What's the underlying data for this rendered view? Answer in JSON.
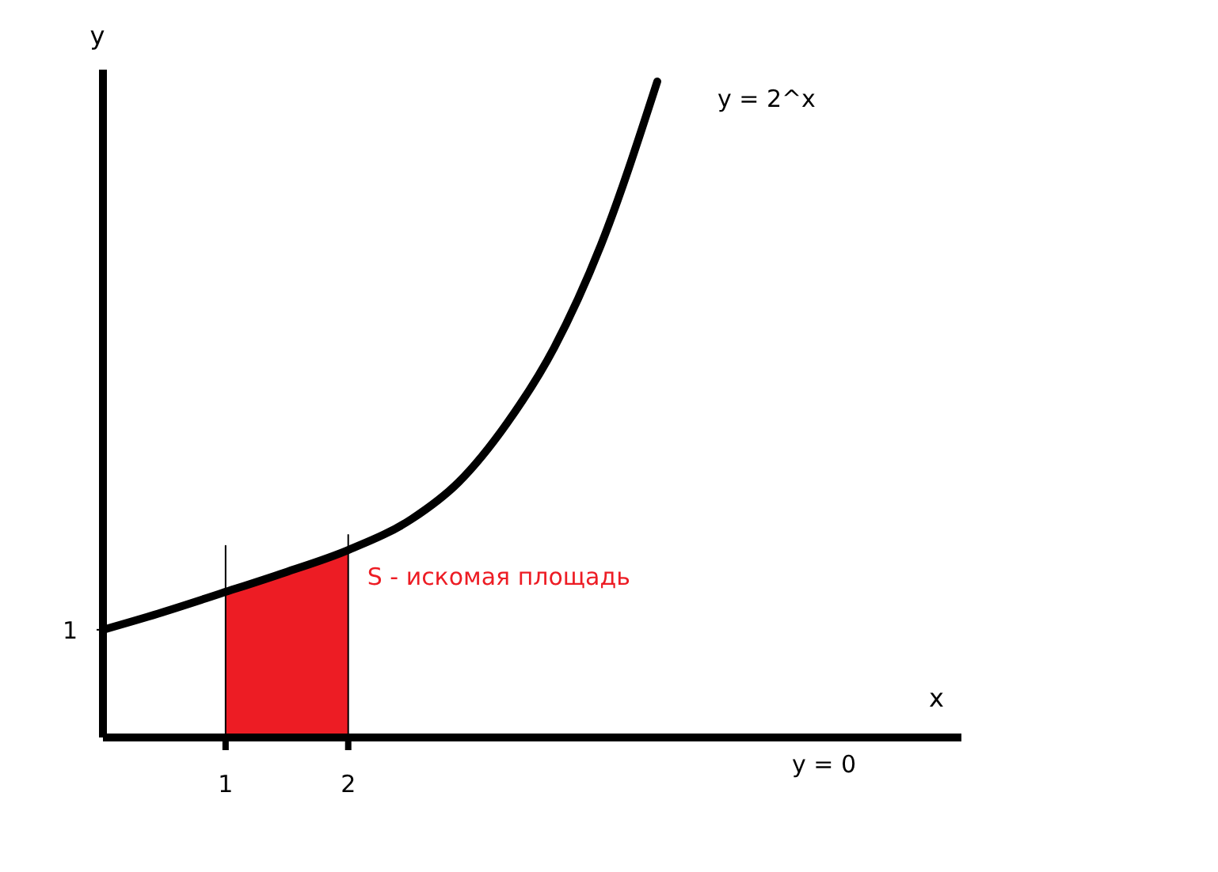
{
  "chart_data": {
    "type": "line",
    "xlabel": "x",
    "ylabel": "y",
    "xlim": [
      0,
      7
    ],
    "ylim": [
      0,
      6.2
    ],
    "xticks": [
      1,
      2
    ],
    "yticks": [
      1
    ],
    "marker": "none",
    "line_style": "solid",
    "series": [
      {
        "type": "area",
        "name": "S - искомая площадь",
        "color": "#ed1c24",
        "x": [
          1,
          1.5,
          2
        ],
        "values": [
          1.34,
          1.53,
          1.74
        ]
      },
      {
        "color": "#000000",
        "x": [
          1,
          1
        ],
        "values": [
          0,
          1.78
        ]
      },
      {
        "color": "#000000",
        "x": [
          2,
          2
        ],
        "values": [
          0,
          1.88
        ]
      },
      {
        "name": "y = 2^x",
        "color": "#000000",
        "x": [
          0,
          0.45,
          0.97,
          1.48,
          2.0,
          2.52,
          2.9,
          3.29,
          3.68,
          4.06,
          4.52
        ],
        "values": [
          1,
          1.15,
          1.34,
          1.53,
          1.74,
          2.03,
          2.37,
          2.91,
          3.62,
          4.57,
          6.09
        ]
      }
    ],
    "annotations": [
      "y = 0"
    ]
  }
}
